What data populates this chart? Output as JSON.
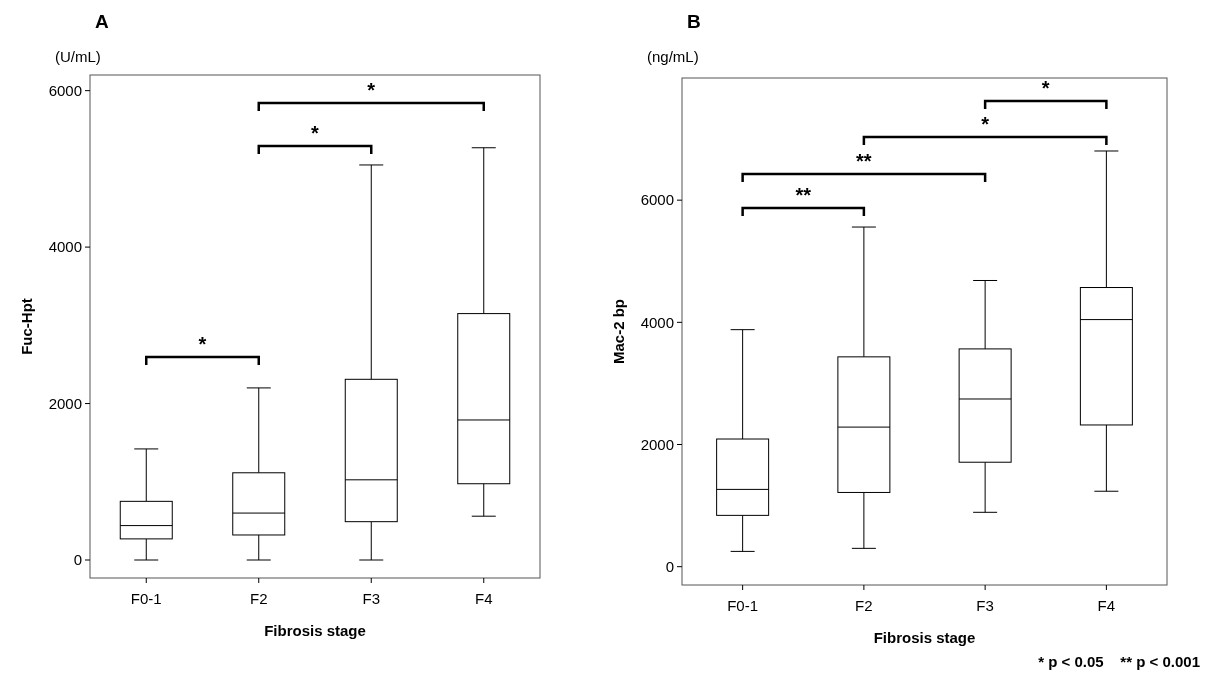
{
  "chart_data": [
    {
      "type": "box",
      "title": "A",
      "ylabel": "Fuc-Hpt",
      "xlabel": "Fibrosis stage",
      "categories": [
        "F0-1",
        "F2",
        "F3",
        "F4"
      ],
      "ylim": [
        -230,
        6200
      ],
      "yticks": [
        0,
        2000,
        4000,
        6000
      ],
      "grid": false,
      "boxes": [
        {
          "low": 0,
          "q1": 270,
          "median": 440,
          "q3": 750,
          "high": 1420
        },
        {
          "low": 0,
          "q1": 320,
          "median": 600,
          "q3": 1115,
          "high": 2200
        },
        {
          "low": 0,
          "q1": 490,
          "median": 1025,
          "q3": 2310,
          "high": 5050
        },
        {
          "low": 560,
          "q1": 975,
          "median": 1790,
          "q3": 3150,
          "high": 5270
        }
      ],
      "annotations": [
        "(U/mL)",
        "*",
        "*",
        "*"
      ]
    },
    {
      "type": "box",
      "title": "B",
      "ylabel": "Mac-2 bp",
      "xlabel": "Fibrosis stage",
      "categories": [
        "F0-1",
        "F2",
        "F3",
        "F4"
      ],
      "ylim": [
        -300,
        8000
      ],
      "yticks": [
        0,
        2000,
        4000,
        6000
      ],
      "grid": false,
      "boxes": [
        {
          "low": 250,
          "q1": 840,
          "median": 1265,
          "q3": 2090,
          "high": 3880
        },
        {
          "low": 300,
          "q1": 1215,
          "median": 2285,
          "q3": 3435,
          "high": 5560
        },
        {
          "low": 890,
          "q1": 1710,
          "median": 2745,
          "q3": 3565,
          "high": 4685
        },
        {
          "low": 1235,
          "q1": 2320,
          "median": 4045,
          "q3": 4570,
          "high": 6805
        }
      ],
      "annotations": [
        "(ng/mL)",
        "**",
        "**",
        "*",
        "*",
        "* p < 0.05    ** p < 0.001"
      ]
    }
  ]
}
